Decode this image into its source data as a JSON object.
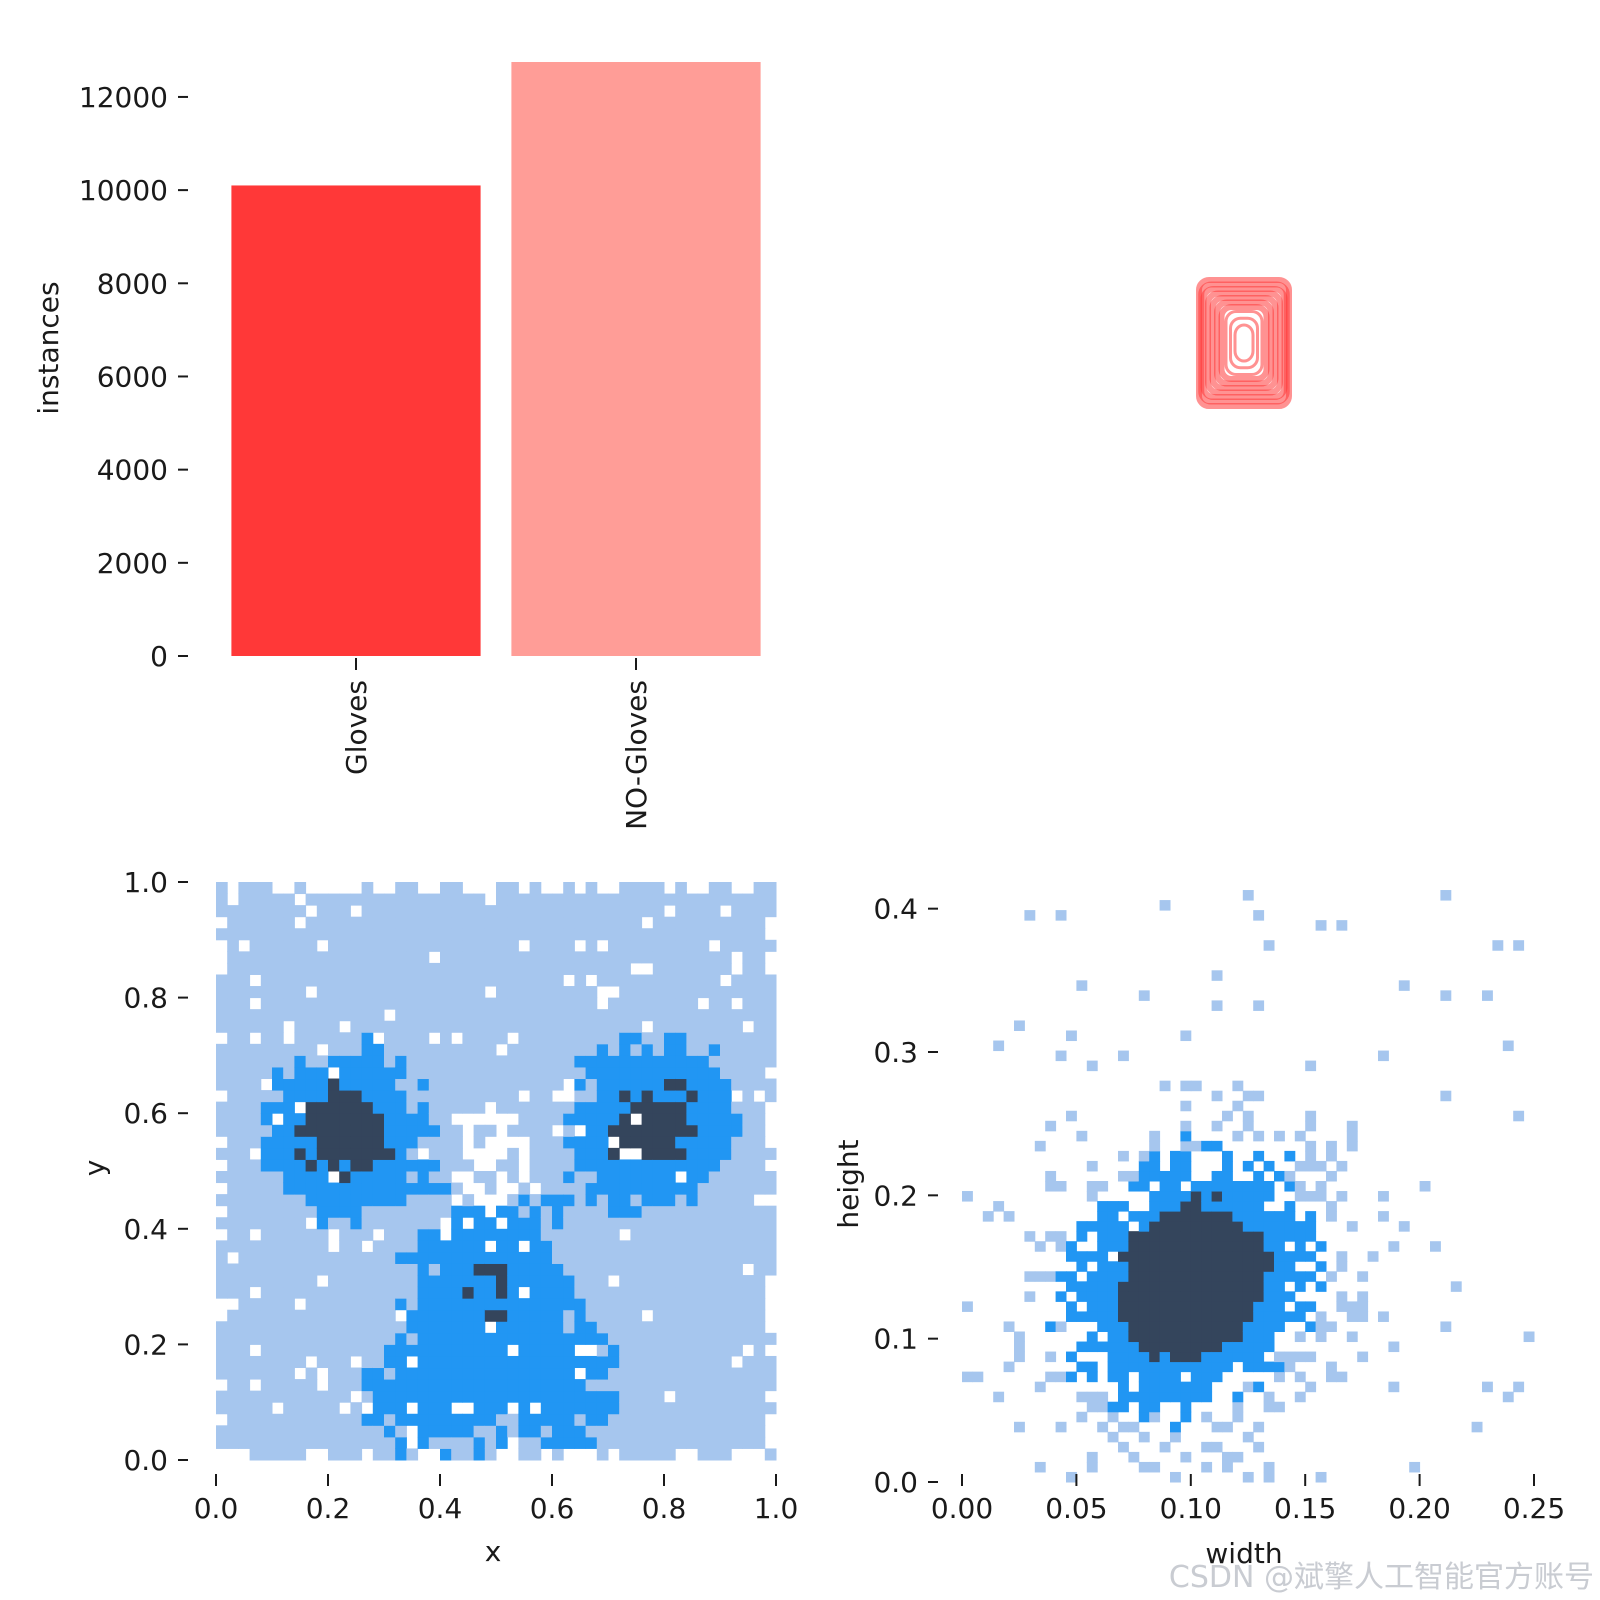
{
  "watermark": "CSDN @斌擎人工智能官方账号",
  "chart_data": [
    {
      "id": "class_instances",
      "type": "bar",
      "categories": [
        "Gloves",
        "NO-Gloves"
      ],
      "values": [
        10100,
        12750
      ],
      "colors": [
        "#ff3838",
        "#ff9d97"
      ],
      "xlabel": "",
      "ylabel": "instances",
      "ylim": [
        0,
        12750
      ],
      "yticks": [
        0,
        2000,
        4000,
        6000,
        8000,
        10000,
        12000
      ],
      "tick_labels": [
        "0",
        "2000",
        "4000",
        "6000",
        "8000",
        "10000",
        "12000"
      ],
      "grid": false
    },
    {
      "id": "box_shapes",
      "type": "other",
      "description_color": "#ff3838",
      "boxes_wh": [
        [
          0.1,
          0.14
        ],
        [
          0.095,
          0.13
        ],
        [
          0.09,
          0.12
        ],
        [
          0.08,
          0.11
        ],
        [
          0.07,
          0.1
        ],
        [
          0.06,
          0.09
        ],
        [
          0.05,
          0.08
        ],
        [
          0.04,
          0.07
        ],
        [
          0.03,
          0.055
        ],
        [
          0.02,
          0.04
        ]
      ]
    },
    {
      "id": "xy_distribution",
      "type": "heatmap",
      "xlabel": "x",
      "ylabel": "y",
      "xlim": [
        0.0,
        1.0
      ],
      "ylim": [
        0.0,
        1.0
      ],
      "xticks": [
        "0.0",
        "0.2",
        "0.4",
        "0.6",
        "0.8",
        "1.0"
      ],
      "yticks": [
        "0.0",
        "0.2",
        "0.4",
        "0.6",
        "0.8",
        "1.0"
      ],
      "colors": [
        "#a6c6ee",
        "#2196f3",
        "#34455c"
      ],
      "density_centers": [
        {
          "x": 0.23,
          "y": 0.57,
          "weight": 1.0
        },
        {
          "x": 0.78,
          "y": 0.58,
          "weight": 1.0
        },
        {
          "x": 0.5,
          "y": 0.33,
          "weight": 0.7
        },
        {
          "x": 0.36,
          "y": 0.12,
          "weight": 0.5
        },
        {
          "x": 0.62,
          "y": 0.12,
          "weight": 0.5
        }
      ],
      "grid": false
    },
    {
      "id": "wh_distribution",
      "type": "heatmap",
      "xlabel": "width",
      "ylabel": "height",
      "xlim": [
        0.0,
        0.25
      ],
      "ylim": [
        0.0,
        0.42
      ],
      "xticks": [
        "0.00",
        "0.05",
        "0.10",
        "0.15",
        "0.20",
        "0.25"
      ],
      "yticks": [
        "0.0",
        "0.1",
        "0.2",
        "0.3",
        "0.4"
      ],
      "colors": [
        "#a6c6ee",
        "#2196f3",
        "#34455c"
      ],
      "density_centers": [
        {
          "x": 0.1,
          "y": 0.14,
          "weight": 1.0
        }
      ],
      "grid": false
    }
  ]
}
